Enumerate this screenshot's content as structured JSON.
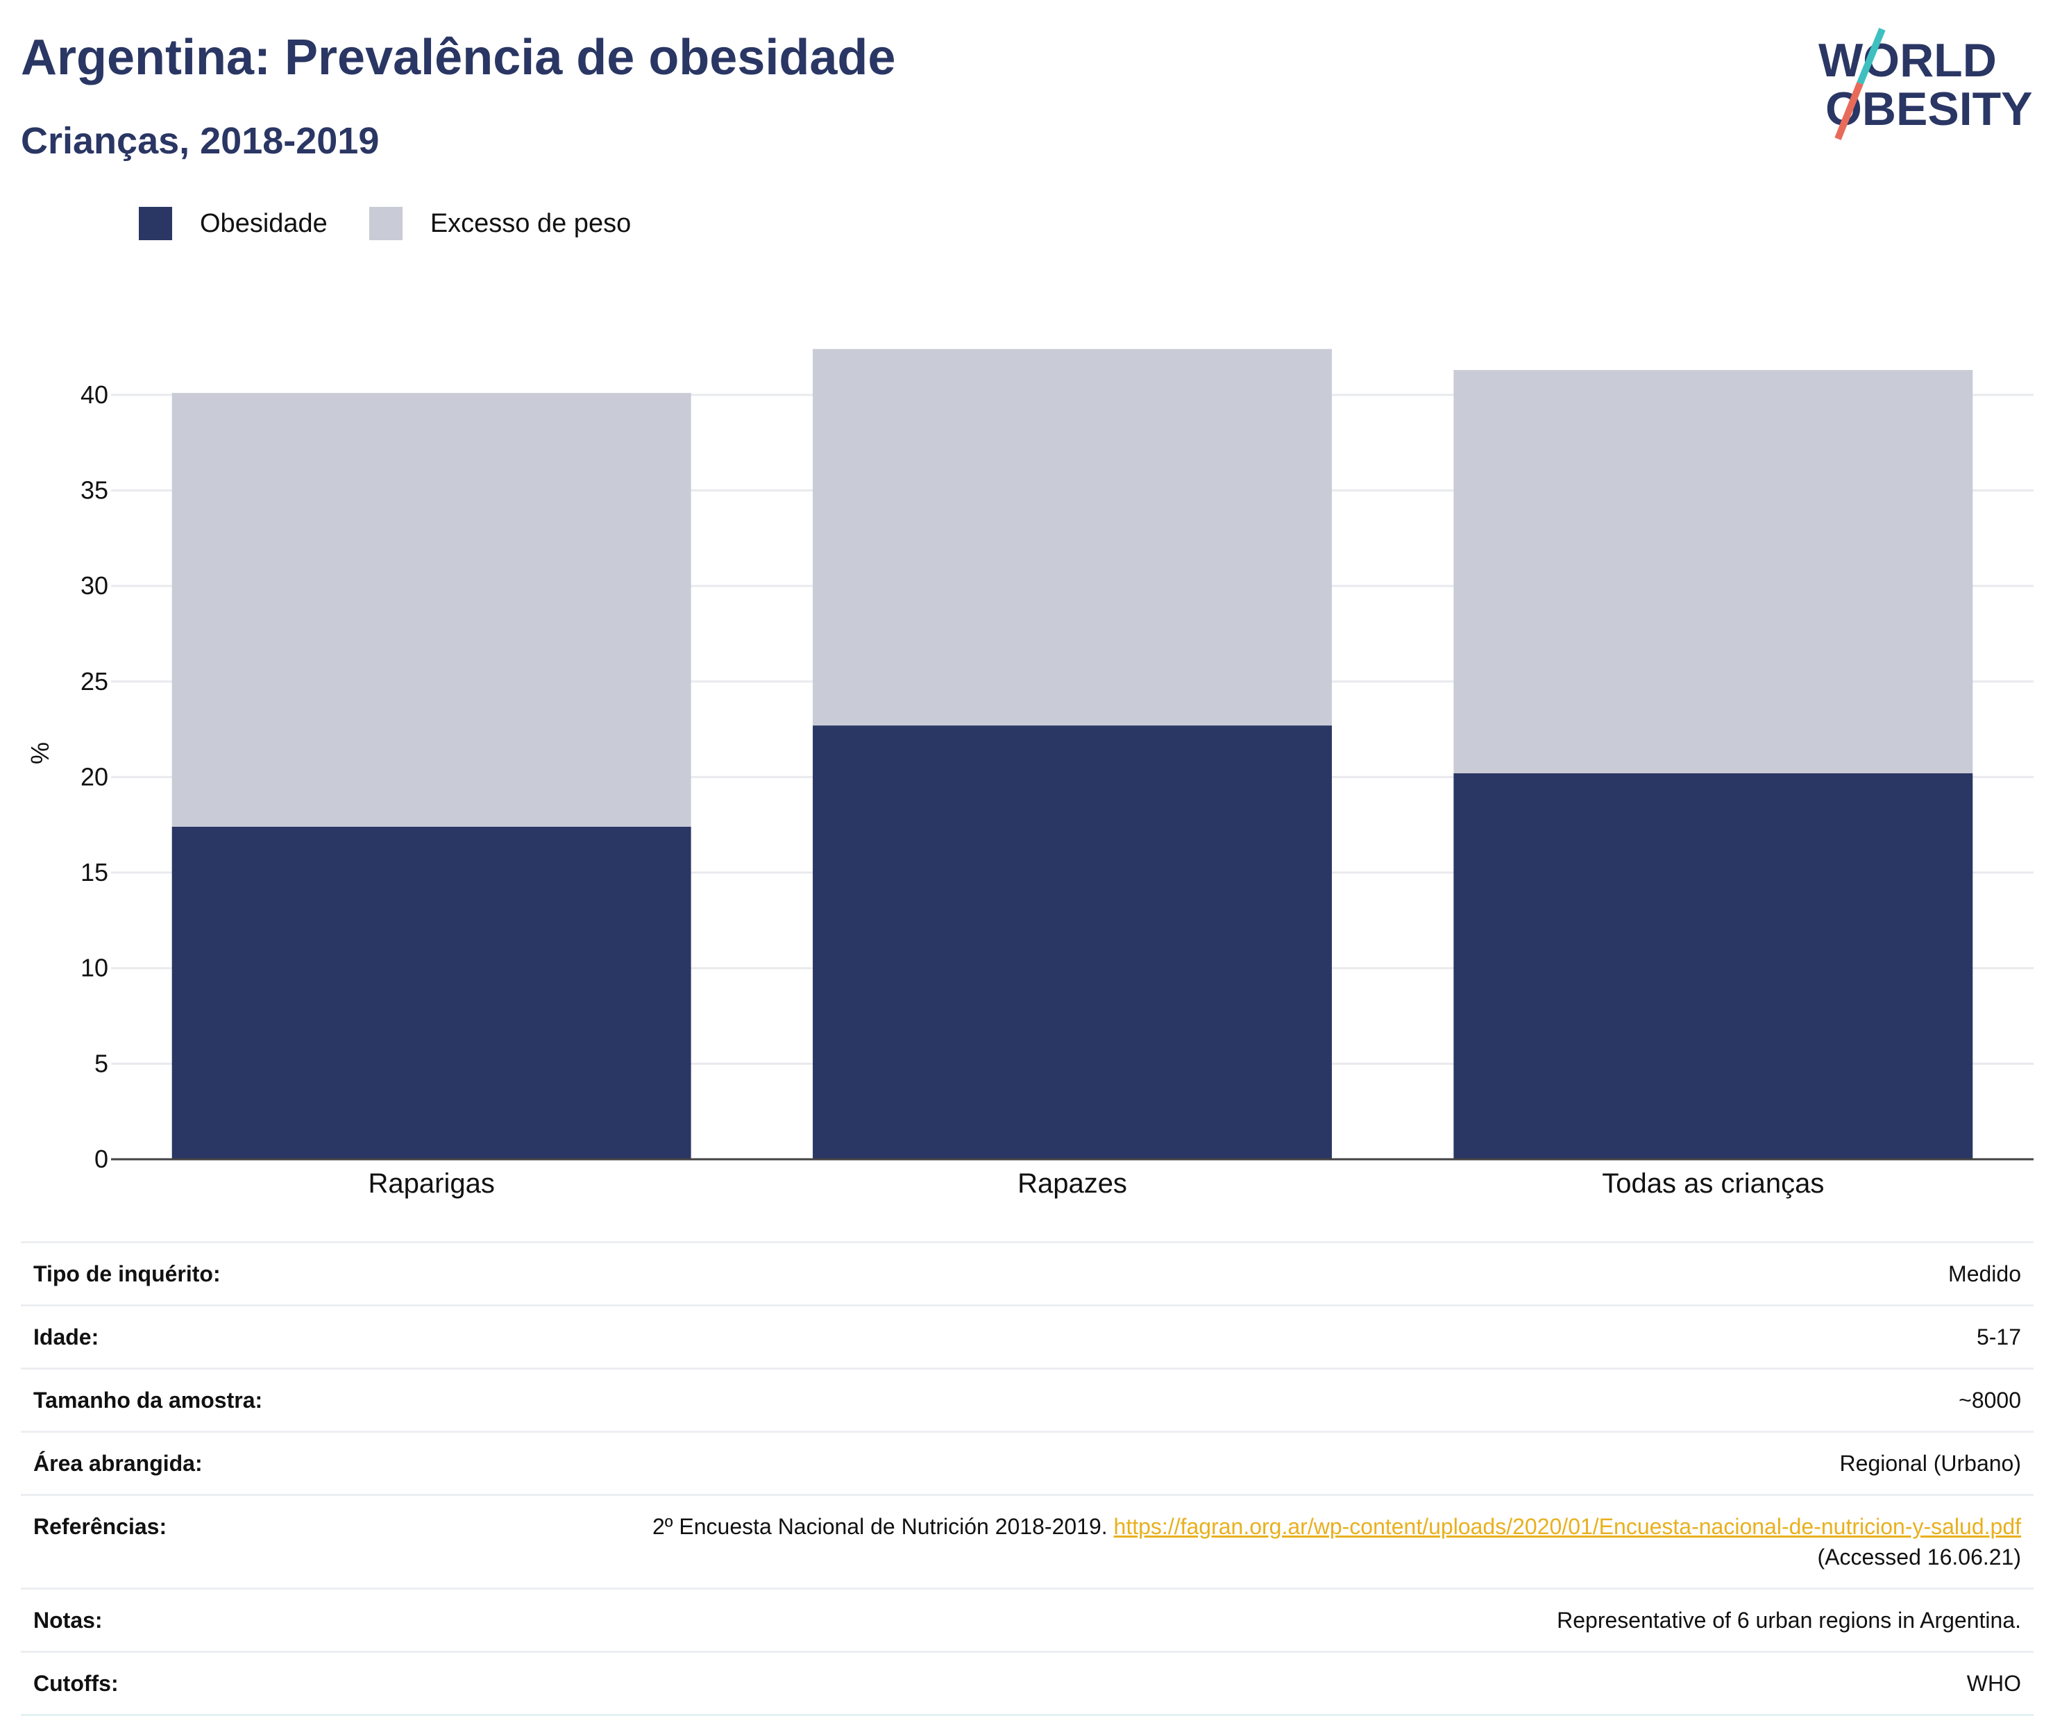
{
  "header": {
    "title": "Argentina: Prevalência de obesidade",
    "subtitle": "Crianças, 2018-2019"
  },
  "logo": {
    "line1": "WORLD",
    "line2": "OBESITY"
  },
  "legend": [
    {
      "label": "Obesidade",
      "color": "#2a3663"
    },
    {
      "label": "Excesso de peso",
      "color": "#c9cbd6"
    }
  ],
  "chart_data": {
    "type": "bar",
    "stacked": true,
    "categories": [
      "Raparigas",
      "Rapazes",
      "Todas as crianças"
    ],
    "series": [
      {
        "name": "Obesidade",
        "values": [
          17.4,
          22.7,
          20.2
        ],
        "color": "#2a3663"
      },
      {
        "name": "Excesso de peso",
        "values": [
          22.7,
          19.7,
          21.1
        ],
        "color": "#c9cbd6"
      }
    ],
    "ylabel": "%",
    "ylim": [
      0,
      42.5
    ],
    "yticks": [
      0,
      5,
      10,
      15,
      20,
      25,
      30,
      35,
      40
    ],
    "grid": true
  },
  "info": {
    "rows": [
      {
        "key": "Tipo de inquérito:",
        "value": "Medido"
      },
      {
        "key": "Idade:",
        "value": "5-17"
      },
      {
        "key": "Tamanho da amostra:",
        "value": "~8000"
      },
      {
        "key": "Área abrangida:",
        "value": "Regional (Urbano)"
      }
    ],
    "references": {
      "key": "Referências:",
      "text": "2º Encuesta Nacional de Nutrición 2018-2019.",
      "link": "https://fagran.org.ar/wp-content/uploads/2020/01/Encuesta-nacional-de-nutricion-y-salud.pdf",
      "suffix": "(Accessed 16.06.21)"
    },
    "notes": {
      "key": "Notas:",
      "value": "Representative of 6 urban regions in Argentina."
    },
    "cutoffs": {
      "key": "Cutoffs:",
      "value": "WHO"
    }
  }
}
